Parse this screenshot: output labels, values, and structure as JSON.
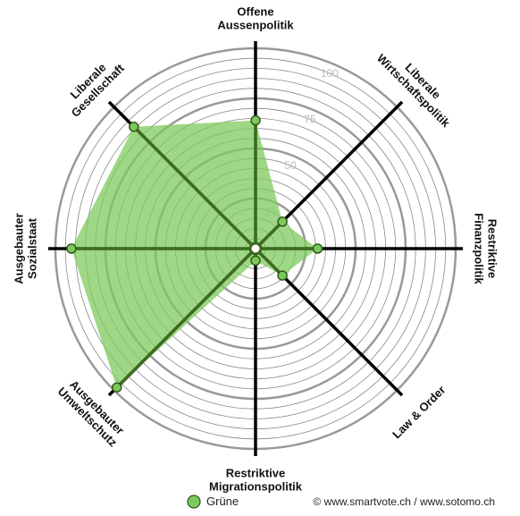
{
  "chart_data": {
    "type": "radar",
    "categories": [
      "Offene\nAussenpolitik",
      "Liberale\nWirtschaftspolitik",
      "Restriktive\nFinanzpolitik",
      "Law & Order",
      "Restriktive\nMigrationspolitik",
      "Ausgebauter\nUmweltschutz",
      "Ausgebauter\nSozialstaat",
      "Liberale\nGesellschaft"
    ],
    "series": [
      {
        "name": "Grüne",
        "color": "#7dc95e",
        "values": [
          64,
          19,
          31,
          19,
          6,
          98,
          92,
          86
        ]
      }
    ],
    "rlim": [
      0,
      100
    ],
    "rticks": [
      25,
      50,
      75,
      100
    ],
    "credit": "© www.smartvote.ch / www.sotomo.ch"
  }
}
